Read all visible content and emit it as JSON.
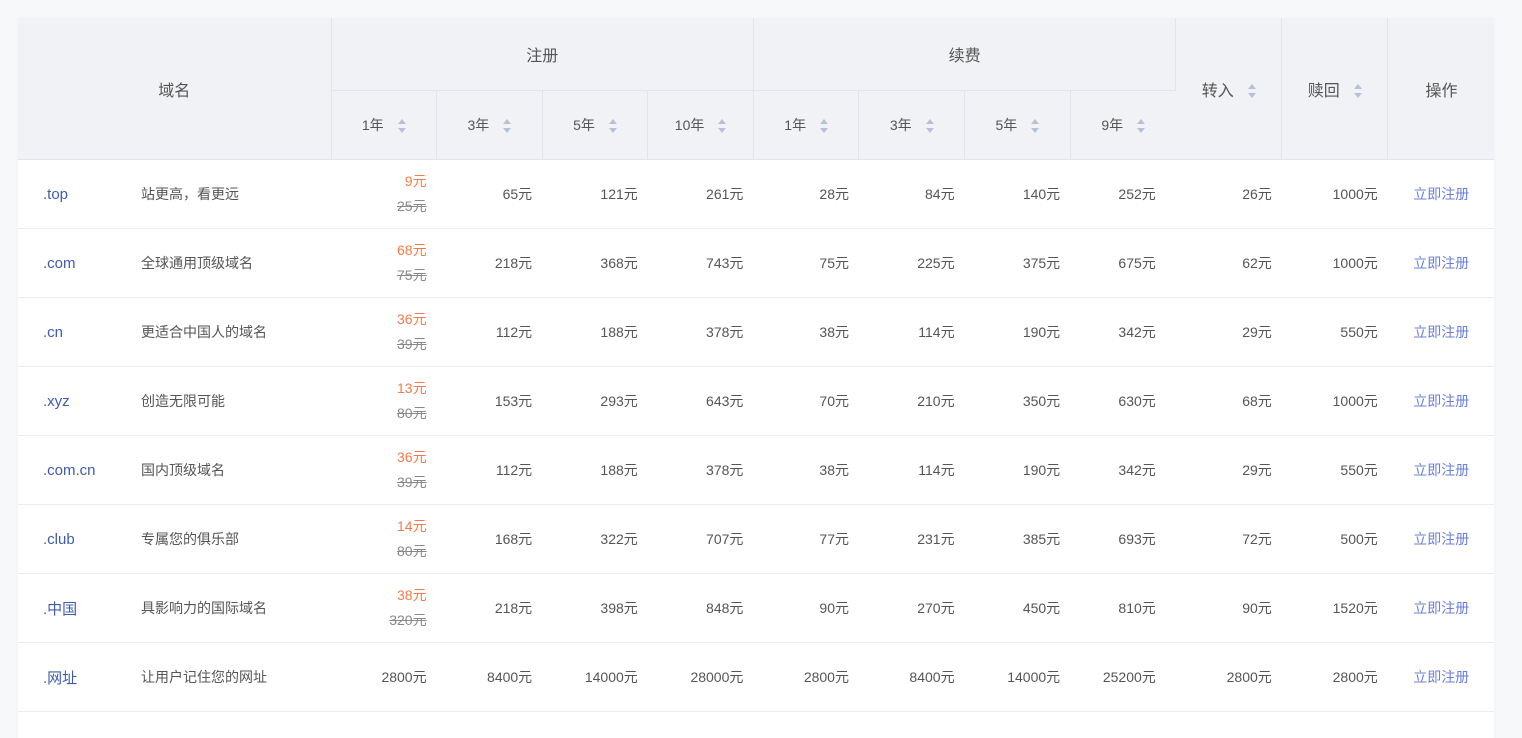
{
  "header": {
    "domain": "域名",
    "register": "注册",
    "renew": "续费",
    "transfer": "转入",
    "redeem": "赎回",
    "action": "操作",
    "reg_years": [
      "1年",
      "3年",
      "5年",
      "10年"
    ],
    "renew_years": [
      "1年",
      "3年",
      "5年",
      "9年"
    ]
  },
  "action_label": "立即注册",
  "rows": [
    {
      "domain": ".top",
      "desc": "站更高，看更远",
      "reg1_sale": "9元",
      "reg1_orig": "25元",
      "reg3": "65元",
      "reg5": "121元",
      "reg10": "261元",
      "ren1": "28元",
      "ren3": "84元",
      "ren5": "140元",
      "ren9": "252元",
      "transfer": "26元",
      "redeem": "1000元"
    },
    {
      "domain": ".com",
      "desc": "全球通用顶级域名",
      "reg1_sale": "68元",
      "reg1_orig": "75元",
      "reg3": "218元",
      "reg5": "368元",
      "reg10": "743元",
      "ren1": "75元",
      "ren3": "225元",
      "ren5": "375元",
      "ren9": "675元",
      "transfer": "62元",
      "redeem": "1000元"
    },
    {
      "domain": ".cn",
      "desc": "更适合中国人的域名",
      "reg1_sale": "36元",
      "reg1_orig": "39元",
      "reg3": "112元",
      "reg5": "188元",
      "reg10": "378元",
      "ren1": "38元",
      "ren3": "114元",
      "ren5": "190元",
      "ren9": "342元",
      "transfer": "29元",
      "redeem": "550元"
    },
    {
      "domain": ".xyz",
      "desc": "创造无限可能",
      "reg1_sale": "13元",
      "reg1_orig": "80元",
      "reg3": "153元",
      "reg5": "293元",
      "reg10": "643元",
      "ren1": "70元",
      "ren3": "210元",
      "ren5": "350元",
      "ren9": "630元",
      "transfer": "68元",
      "redeem": "1000元"
    },
    {
      "domain": ".com.cn",
      "desc": "国内顶级域名",
      "reg1_sale": "36元",
      "reg1_orig": "39元",
      "reg3": "112元",
      "reg5": "188元",
      "reg10": "378元",
      "ren1": "38元",
      "ren3": "114元",
      "ren5": "190元",
      "ren9": "342元",
      "transfer": "29元",
      "redeem": "550元"
    },
    {
      "domain": ".club",
      "desc": "专属您的俱乐部",
      "reg1_sale": "14元",
      "reg1_orig": "80元",
      "reg3": "168元",
      "reg5": "322元",
      "reg10": "707元",
      "ren1": "77元",
      "ren3": "231元",
      "ren5": "385元",
      "ren9": "693元",
      "transfer": "72元",
      "redeem": "500元"
    },
    {
      "domain": ".中国",
      "desc": "具影响力的国际域名",
      "reg1_sale": "38元",
      "reg1_orig": "320元",
      "reg3": "218元",
      "reg5": "398元",
      "reg10": "848元",
      "ren1": "90元",
      "ren3": "270元",
      "ren5": "450元",
      "ren9": "810元",
      "transfer": "90元",
      "redeem": "1520元"
    },
    {
      "domain": ".网址",
      "desc": "让用户记住您的网址",
      "reg1_plain": "2800元",
      "reg3": "8400元",
      "reg5": "14000元",
      "reg10": "28000元",
      "ren1": "2800元",
      "ren3": "8400元",
      "ren5": "14000元",
      "ren9": "25200元",
      "transfer": "2800元",
      "redeem": "2800元"
    }
  ],
  "colors": {
    "domain_text": "#3f5ca9",
    "sale_price": "#f07c4a",
    "action_link": "#6b7fd6",
    "header_bg": "#f1f2f6"
  }
}
